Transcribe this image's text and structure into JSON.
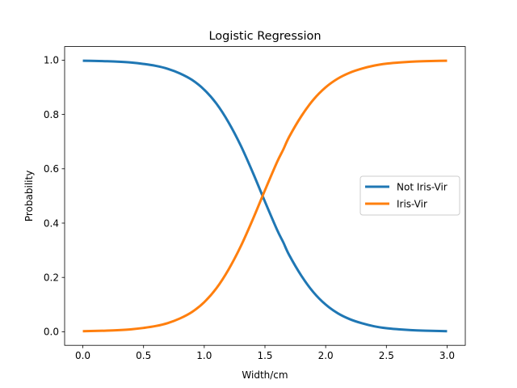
{
  "chart_data": {
    "type": "line",
    "title": "Logistic Regression",
    "xlabel": "Width/cm",
    "ylabel": "Probability",
    "xlim": [
      -0.15,
      3.15
    ],
    "ylim": [
      -0.05,
      1.05
    ],
    "xticks": [
      0.0,
      0.5,
      1.0,
      1.5,
      2.0,
      2.5,
      3.0
    ],
    "xtick_labels": [
      "0.0",
      "0.5",
      "1.0",
      "1.5",
      "2.0",
      "2.5",
      "3.0"
    ],
    "yticks": [
      0.0,
      0.2,
      0.4,
      0.6,
      0.8,
      1.0
    ],
    "ytick_labels": [
      "0.0",
      "0.2",
      "0.4",
      "0.6",
      "0.8",
      "1.0"
    ],
    "grid": false,
    "legend_position": "center-right",
    "x": [
      0.0,
      0.1,
      0.2,
      0.3,
      0.4,
      0.5,
      0.6,
      0.7,
      0.8,
      0.9,
      1.0,
      1.1,
      1.2,
      1.3,
      1.4,
      1.5,
      1.6,
      1.65,
      1.7,
      1.8,
      1.9,
      2.0,
      2.1,
      2.2,
      2.3,
      2.4,
      2.5,
      2.6,
      2.7,
      2.8,
      2.9,
      3.0
    ],
    "series": [
      {
        "name": "Not Iris-Vir",
        "color": "#1f77b4",
        "values": [
          0.998,
          0.997,
          0.996,
          0.994,
          0.991,
          0.986,
          0.979,
          0.968,
          0.951,
          0.927,
          0.891,
          0.84,
          0.771,
          0.686,
          0.586,
          0.479,
          0.375,
          0.33,
          0.282,
          0.206,
          0.145,
          0.1,
          0.068,
          0.046,
          0.031,
          0.02,
          0.013,
          0.009,
          0.006,
          0.004,
          0.003,
          0.002
        ]
      },
      {
        "name": "Iris-Vir",
        "color": "#ff7f0e",
        "values": [
          0.002,
          0.003,
          0.004,
          0.006,
          0.009,
          0.014,
          0.021,
          0.032,
          0.049,
          0.073,
          0.109,
          0.16,
          0.229,
          0.314,
          0.414,
          0.521,
          0.625,
          0.67,
          0.718,
          0.794,
          0.855,
          0.9,
          0.932,
          0.954,
          0.969,
          0.98,
          0.987,
          0.991,
          0.994,
          0.996,
          0.997,
          0.998
        ]
      }
    ]
  }
}
